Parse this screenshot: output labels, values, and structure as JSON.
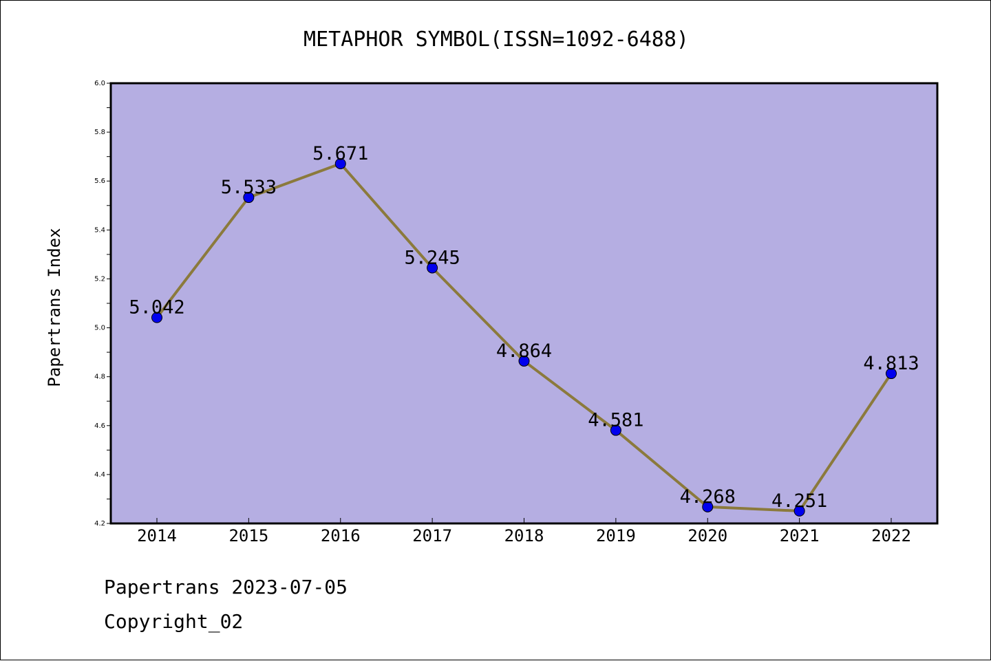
{
  "chart_data": {
    "type": "line",
    "title": "METAPHOR SYMBOL(ISSN=1092-6488)",
    "xlabel": "",
    "ylabel": "Papertrans Index",
    "categories": [
      "2014",
      "2015",
      "2016",
      "2017",
      "2018",
      "2019",
      "2020",
      "2021",
      "2022"
    ],
    "series": [
      {
        "values": [
          5.042,
          5.533,
          5.671,
          5.245,
          4.864,
          4.581,
          4.268,
          4.251,
          4.813
        ],
        "data_labels": [
          "5.042",
          "5.533",
          "5.671",
          "5.245",
          "4.864",
          "4.581",
          "4.268",
          "4.251",
          "4.813"
        ]
      }
    ],
    "ylim": [
      4.2,
      6.0
    ],
    "yticks": [
      "4.2",
      "4.4",
      "4.6",
      "4.8",
      "5.0",
      "5.2",
      "5.4",
      "5.6",
      "5.8",
      "6.0"
    ],
    "grid": false,
    "legend": "none",
    "colors": {
      "plot_background": "#b5aee2",
      "line": "#8b7a3c",
      "marker": "#0000ee"
    }
  },
  "footer": {
    "line1": "Papertrans 2023-07-05",
    "line2": "Copyright_02"
  }
}
